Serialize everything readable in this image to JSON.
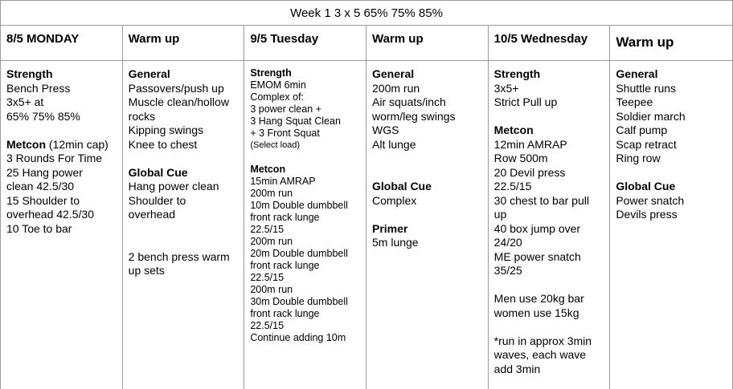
{
  "week_title": "Week 1 3 x 5 65% 75% 85%",
  "colors": {
    "border": "#9a9a9a",
    "text": "#000000",
    "background": "#ffffff"
  },
  "columns": [
    {
      "header": "8/5 MONDAY",
      "lines": [
        {
          "runs": [
            {
              "text": "Strength",
              "bold": true
            }
          ]
        },
        {
          "runs": [
            {
              "text": "Bench Press"
            }
          ]
        },
        {
          "runs": [
            {
              "text": "3x5+ at"
            }
          ]
        },
        {
          "runs": [
            {
              "text": "65% 75% 85%"
            }
          ]
        },
        {
          "runs": []
        },
        {
          "runs": [
            {
              "text": "Metcon",
              "bold": true
            },
            {
              "text": " (12min cap)"
            }
          ]
        },
        {
          "runs": [
            {
              "text": "3 Rounds For Time"
            }
          ]
        },
        {
          "runs": [
            {
              "text": "25 Hang power"
            }
          ]
        },
        {
          "runs": [
            {
              "text": "clean 42.5/30"
            }
          ]
        },
        {
          "runs": [
            {
              "text": "15 Shoulder to"
            }
          ]
        },
        {
          "runs": [
            {
              "text": "overhead 42.5/30"
            }
          ]
        },
        {
          "runs": [
            {
              "text": "10 Toe to bar"
            }
          ]
        }
      ]
    },
    {
      "header": "Warm up",
      "lines": [
        {
          "runs": [
            {
              "text": "General",
              "bold": true
            }
          ]
        },
        {
          "runs": [
            {
              "text": "Passovers/push up"
            }
          ]
        },
        {
          "runs": [
            {
              "text": "Muscle clean/hollow"
            }
          ]
        },
        {
          "runs": [
            {
              "text": "rocks"
            }
          ]
        },
        {
          "runs": [
            {
              "text": "Kipping swings"
            }
          ]
        },
        {
          "runs": [
            {
              "text": "Knee to chest"
            }
          ]
        },
        {
          "runs": []
        },
        {
          "runs": [
            {
              "text": "Global Cue",
              "bold": true
            }
          ]
        },
        {
          "runs": [
            {
              "text": "Hang power clean"
            }
          ]
        },
        {
          "runs": [
            {
              "text": "Shoulder to"
            }
          ]
        },
        {
          "runs": [
            {
              "text": "overhead"
            }
          ]
        },
        {
          "runs": []
        },
        {
          "runs": []
        },
        {
          "runs": [
            {
              "text": "2 bench press warm"
            }
          ]
        },
        {
          "runs": [
            {
              "text": "up sets"
            }
          ]
        }
      ]
    },
    {
      "header": "9/5 Tuesday",
      "compact": true,
      "lines": [
        {
          "runs": [
            {
              "text": "Strength",
              "bold": true
            }
          ]
        },
        {
          "runs": [
            {
              "text": "EMOM 6min"
            }
          ]
        },
        {
          "runs": [
            {
              "text": "Complex of:"
            }
          ]
        },
        {
          "runs": [
            {
              "text": "3 power clean +"
            }
          ]
        },
        {
          "runs": [
            {
              "text": "3 Hang Squat Clean"
            }
          ]
        },
        {
          "runs": [
            {
              "text": "+ 3 Front Squat"
            }
          ]
        },
        {
          "runs": [
            {
              "text": "(Select load)"
            }
          ],
          "xsmall": true
        },
        {
          "runs": []
        },
        {
          "runs": [
            {
              "text": "Metcon",
              "bold": true
            }
          ]
        },
        {
          "runs": [
            {
              "text": "15min AMRAP"
            }
          ]
        },
        {
          "runs": [
            {
              "text": "200m run"
            }
          ]
        },
        {
          "runs": [
            {
              "text": "10m Double dumbbell"
            }
          ]
        },
        {
          "runs": [
            {
              "text": "front rack lunge"
            }
          ]
        },
        {
          "runs": [
            {
              "text": "22.5/15"
            }
          ]
        },
        {
          "runs": [
            {
              "text": "200m run"
            }
          ]
        },
        {
          "runs": [
            {
              "text": "20m Double dumbbell"
            }
          ]
        },
        {
          "runs": [
            {
              "text": "front rack lunge"
            }
          ]
        },
        {
          "runs": [
            {
              "text": "22.5/15"
            }
          ]
        },
        {
          "runs": [
            {
              "text": "200m run"
            }
          ]
        },
        {
          "runs": [
            {
              "text": "30m Double dumbbell"
            }
          ]
        },
        {
          "runs": [
            {
              "text": "front rack lunge"
            }
          ]
        },
        {
          "runs": [
            {
              "text": "22.5/15"
            }
          ]
        },
        {
          "runs": [
            {
              "text": "Continue adding 10m"
            }
          ]
        }
      ]
    },
    {
      "header": "Warm up",
      "lines": [
        {
          "runs": [
            {
              "text": "General",
              "bold": true
            }
          ]
        },
        {
          "runs": [
            {
              "text": "200m run"
            }
          ]
        },
        {
          "runs": [
            {
              "text": "Air squats/inch"
            }
          ]
        },
        {
          "runs": [
            {
              "text": "worm/leg swings"
            }
          ]
        },
        {
          "runs": [
            {
              "text": "WGS"
            }
          ]
        },
        {
          "runs": [
            {
              "text": "Alt lunge"
            }
          ]
        },
        {
          "runs": []
        },
        {
          "runs": []
        },
        {
          "runs": [
            {
              "text": "Global Cue",
              "bold": true
            }
          ]
        },
        {
          "runs": [
            {
              "text": "Complex"
            }
          ]
        },
        {
          "runs": []
        },
        {
          "runs": [
            {
              "text": "Primer",
              "bold": true
            }
          ]
        },
        {
          "runs": [
            {
              "text": "5m lunge"
            }
          ]
        }
      ]
    },
    {
      "header": "10/5 Wednesday",
      "lines": [
        {
          "runs": [
            {
              "text": "Strength",
              "bold": true
            }
          ]
        },
        {
          "runs": [
            {
              "text": "3x5+"
            }
          ]
        },
        {
          "runs": [
            {
              "text": "Strict Pull up"
            }
          ]
        },
        {
          "runs": []
        },
        {
          "runs": [
            {
              "text": "Metcon",
              "bold": true
            }
          ]
        },
        {
          "runs": [
            {
              "text": "12min AMRAP"
            }
          ]
        },
        {
          "runs": [
            {
              "text": "Row 500m"
            }
          ]
        },
        {
          "runs": [
            {
              "text": "20 Devil press"
            }
          ]
        },
        {
          "runs": [
            {
              "text": "22.5/15"
            }
          ]
        },
        {
          "runs": [
            {
              "text": "30 chest to bar pull"
            }
          ]
        },
        {
          "runs": [
            {
              "text": "up"
            }
          ]
        },
        {
          "runs": [
            {
              "text": "40 box jump over"
            }
          ]
        },
        {
          "runs": [
            {
              "text": "24/20"
            }
          ]
        },
        {
          "runs": [
            {
              "text": "ME power snatch"
            }
          ]
        },
        {
          "runs": [
            {
              "text": "35/25"
            }
          ]
        },
        {
          "runs": []
        },
        {
          "runs": [
            {
              "text": "Men use 20kg bar"
            }
          ]
        },
        {
          "runs": [
            {
              "text": "women use 15kg"
            }
          ]
        },
        {
          "runs": []
        },
        {
          "runs": [
            {
              "text": "*run in approx 3min"
            }
          ]
        },
        {
          "runs": [
            {
              "text": "waves, each wave"
            }
          ]
        },
        {
          "runs": [
            {
              "text": "add 3min"
            }
          ]
        }
      ]
    },
    {
      "header": "Warm up",
      "header_large": true,
      "lines": [
        {
          "runs": [
            {
              "text": "General",
              "bold": true
            }
          ]
        },
        {
          "runs": [
            {
              "text": "Shuttle runs"
            }
          ]
        },
        {
          "runs": [
            {
              "text": "Teepee"
            }
          ]
        },
        {
          "runs": [
            {
              "text": "Soldier march"
            }
          ]
        },
        {
          "runs": [
            {
              "text": "Calf pump"
            }
          ]
        },
        {
          "runs": [
            {
              "text": "Scap retract"
            }
          ]
        },
        {
          "runs": [
            {
              "text": "Ring row"
            }
          ]
        },
        {
          "runs": []
        },
        {
          "runs": [
            {
              "text": "Global Cue",
              "bold": true
            }
          ]
        },
        {
          "runs": [
            {
              "text": "Power snatch"
            }
          ]
        },
        {
          "runs": [
            {
              "text": "Devils press"
            }
          ]
        }
      ]
    }
  ]
}
